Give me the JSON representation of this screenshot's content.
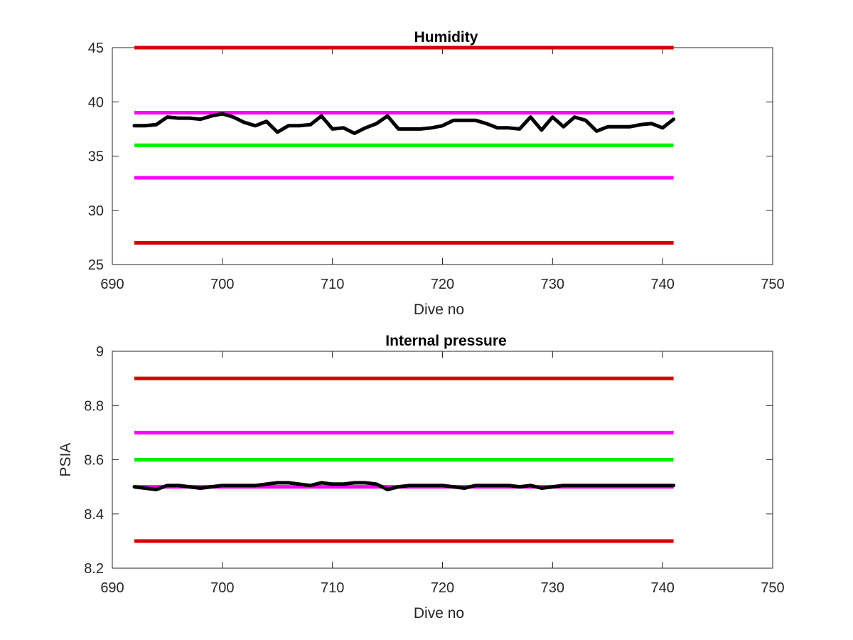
{
  "colors": {
    "limit_outer": "#d40000",
    "limit_inner": "#ff00ff",
    "nominal": "#00ee00",
    "data": "#000000",
    "axis": "#262626"
  },
  "chart_data": [
    {
      "type": "line",
      "title": "Humidity",
      "xlabel": "Dive no",
      "ylabel": "",
      "xlim": [
        690,
        750
      ],
      "ylim": [
        25,
        45
      ],
      "xticks": [
        "690",
        "700",
        "710",
        "720",
        "730",
        "740",
        "750"
      ],
      "yticks": [
        "25",
        "30",
        "35",
        "40",
        "45"
      ],
      "hlines": [
        {
          "y": 45,
          "x": [
            692,
            741
          ],
          "color": "red"
        },
        {
          "y": 39,
          "x": [
            692,
            741
          ],
          "color": "magenta"
        },
        {
          "y": 36,
          "x": [
            692,
            741
          ],
          "color": "green"
        },
        {
          "y": 33,
          "x": [
            692,
            741
          ],
          "color": "magenta"
        },
        {
          "y": 27,
          "x": [
            692,
            741
          ],
          "color": "red"
        }
      ],
      "series": [
        {
          "x": [
            692,
            693,
            694,
            695,
            696,
            697,
            698,
            699,
            700,
            701,
            702,
            703,
            704,
            705,
            706,
            707,
            708,
            709,
            710,
            711,
            712,
            713,
            714,
            715,
            716,
            717,
            718,
            719,
            720,
            721,
            722,
            723,
            724,
            725,
            726,
            727,
            728,
            729,
            730,
            731,
            732,
            733,
            734,
            735,
            736,
            737,
            738,
            739,
            740,
            741
          ],
          "values": [
            37.8,
            37.8,
            37.9,
            38.6,
            38.5,
            38.5,
            38.4,
            38.7,
            38.9,
            38.6,
            38.1,
            37.8,
            38.2,
            37.2,
            37.8,
            37.8,
            37.9,
            38.7,
            37.5,
            37.6,
            37.1,
            37.6,
            38.0,
            38.7,
            37.5,
            37.5,
            37.5,
            37.6,
            37.8,
            38.3,
            38.3,
            38.3,
            38.0,
            37.6,
            37.6,
            37.5,
            38.6,
            37.4,
            38.6,
            37.7,
            38.6,
            38.3,
            37.3,
            37.7,
            37.7,
            37.7,
            37.9,
            38.0,
            37.6,
            38.4
          ]
        }
      ]
    },
    {
      "type": "line",
      "title": "Internal pressure",
      "xlabel": "Dive no",
      "ylabel": "PSIA",
      "xlim": [
        690,
        750
      ],
      "ylim": [
        8.2,
        9
      ],
      "xticks": [
        "690",
        "700",
        "710",
        "720",
        "730",
        "740",
        "750"
      ],
      "yticks": [
        "8.2",
        "8.4",
        "8.6",
        "8.8",
        "9"
      ],
      "hlines": [
        {
          "y": 8.9,
          "x": [
            692,
            741
          ],
          "color": "red"
        },
        {
          "y": 8.7,
          "x": [
            692,
            741
          ],
          "color": "magenta"
        },
        {
          "y": 8.6,
          "x": [
            692,
            741
          ],
          "color": "green"
        },
        {
          "y": 8.5,
          "x": [
            692,
            741
          ],
          "color": "magenta"
        },
        {
          "y": 8.3,
          "x": [
            692,
            741
          ],
          "color": "red"
        }
      ],
      "series": [
        {
          "x": [
            692,
            693,
            694,
            695,
            696,
            697,
            698,
            699,
            700,
            701,
            702,
            703,
            704,
            705,
            706,
            707,
            708,
            709,
            710,
            711,
            712,
            713,
            714,
            715,
            716,
            717,
            718,
            719,
            720,
            721,
            722,
            723,
            724,
            725,
            726,
            727,
            728,
            729,
            730,
            731,
            732,
            733,
            734,
            735,
            736,
            737,
            738,
            739,
            740,
            741
          ],
          "values": [
            8.5,
            8.495,
            8.49,
            8.505,
            8.505,
            8.5,
            8.495,
            8.5,
            8.505,
            8.505,
            8.505,
            8.505,
            8.51,
            8.515,
            8.515,
            8.51,
            8.505,
            8.515,
            8.51,
            8.51,
            8.515,
            8.515,
            8.51,
            8.49,
            8.5,
            8.505,
            8.505,
            8.505,
            8.505,
            8.5,
            8.495,
            8.505,
            8.505,
            8.505,
            8.505,
            8.5,
            8.505,
            8.495,
            8.5,
            8.505,
            8.505,
            8.505,
            8.505,
            8.505,
            8.505,
            8.505,
            8.505,
            8.505,
            8.505,
            8.505
          ]
        }
      ]
    }
  ]
}
